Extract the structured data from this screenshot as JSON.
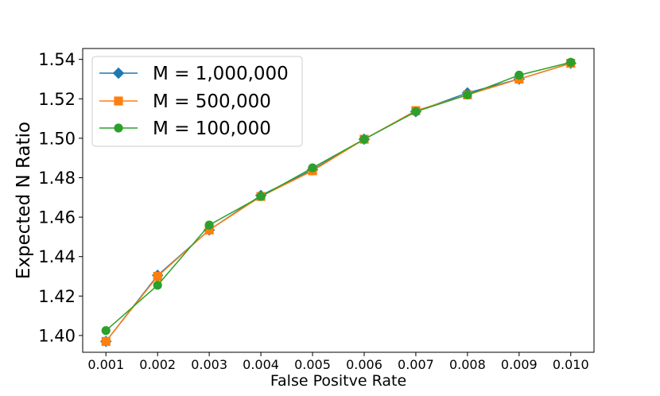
{
  "chart_data": {
    "type": "line",
    "xlabel": "False Positve Rate",
    "ylabel": "Expected N Ratio",
    "x": [
      0.001,
      0.002,
      0.003,
      0.004,
      0.005,
      0.006,
      0.007,
      0.008,
      0.009,
      0.01
    ],
    "x_tick_labels": [
      "0.001",
      "0.002",
      "0.003",
      "0.004",
      "0.005",
      "0.006",
      "0.007",
      "0.008",
      "0.009",
      "0.010"
    ],
    "y_ticks": [
      1.4,
      1.42,
      1.44,
      1.46,
      1.48,
      1.5,
      1.52,
      1.54
    ],
    "y_tick_labels": [
      "1.40",
      "1.42",
      "1.44",
      "1.46",
      "1.48",
      "1.50",
      "1.52",
      "1.54"
    ],
    "ylim": [
      1.3915,
      1.5455
    ],
    "xlim": [
      0.00055,
      0.01045
    ],
    "grid": false,
    "legend_position": "top-left",
    "series": [
      {
        "name": "M = 1,000,000",
        "color": "#1f77b4",
        "marker": "diamond",
        "values": [
          1.397,
          1.4305,
          1.4535,
          1.471,
          1.484,
          1.4995,
          1.5135,
          1.523,
          1.53,
          1.538
        ]
      },
      {
        "name": "M = 500,000",
        "color": "#ff7f0e",
        "marker": "square",
        "values": [
          1.397,
          1.43,
          1.4535,
          1.4705,
          1.4835,
          1.4995,
          1.514,
          1.522,
          1.53,
          1.538
        ]
      },
      {
        "name": "M = 100,000",
        "color": "#2ca02c",
        "marker": "circle",
        "values": [
          1.4025,
          1.4255,
          1.456,
          1.4705,
          1.485,
          1.4995,
          1.5135,
          1.522,
          1.532,
          1.5385
        ]
      }
    ]
  }
}
